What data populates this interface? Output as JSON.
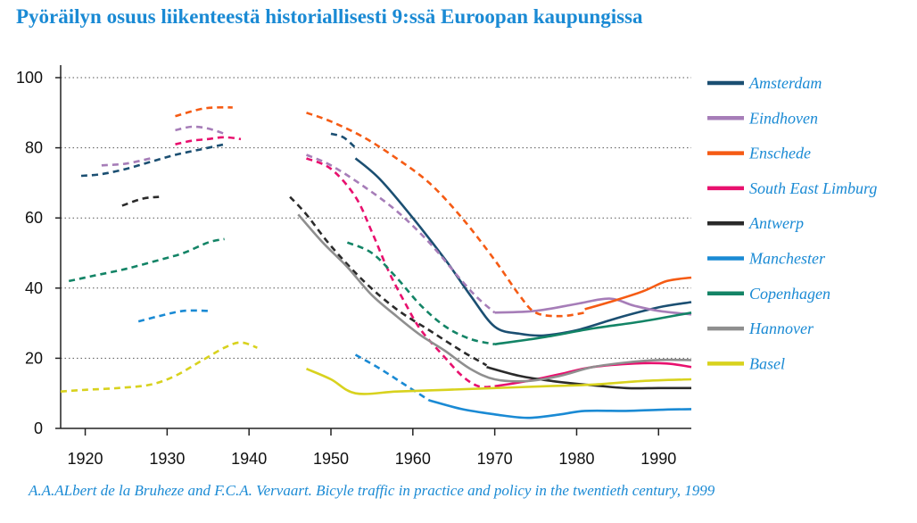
{
  "title": "Pyöräilyn osuus liikenteestä historiallisesti 9:ssä Euroopan kaupungissa",
  "source": "A.A.ALbert de la Bruheze and F.C.A. Vervaart. Bicyle traffic in practice and policy in the twentieth century, 1999",
  "chart_data": {
    "type": "line",
    "title": "Pyöräilyn osuus liikenteestä historiallisesti 9:ssä Euroopan kaupungissa",
    "xlabel": "",
    "ylabel": "",
    "xlim": [
      1917,
      1994
    ],
    "ylim": [
      0,
      100
    ],
    "x_ticks": [
      1920,
      1930,
      1940,
      1950,
      1960,
      1970,
      1980,
      1990
    ],
    "y_ticks": [
      0,
      20,
      40,
      60,
      80,
      100
    ],
    "grid": "horizontal dotted",
    "legend_position": "right",
    "series": [
      {
        "name": "Amsterdam",
        "color": "#1b4f72",
        "segments": [
          {
            "style": "dashed",
            "points": [
              [
                1919.5,
                72
              ],
              [
                1922,
                72.5
              ],
              [
                1925,
                74
              ],
              [
                1928,
                76
              ],
              [
                1931,
                78
              ],
              [
                1934,
                79.5
              ],
              [
                1937,
                81
              ]
            ]
          },
          {
            "style": "dashed",
            "points": [
              [
                1950,
                84
              ],
              [
                1951.5,
                83
              ],
              [
                1953,
                80
              ]
            ]
          },
          {
            "style": "solid",
            "points": [
              [
                1953,
                77
              ],
              [
                1956,
                71
              ],
              [
                1960,
                60
              ],
              [
                1964,
                48
              ],
              [
                1967,
                38
              ],
              [
                1970,
                29
              ],
              [
                1973,
                27
              ],
              [
                1976,
                26.5
              ],
              [
                1980,
                28
              ],
              [
                1985,
                31.5
              ],
              [
                1990,
                34.5
              ],
              [
                1994,
                36
              ]
            ]
          }
        ]
      },
      {
        "name": "Eindhoven",
        "color": "#a67db8",
        "segments": [
          {
            "style": "dashed",
            "points": [
              [
                1922,
                75
              ],
              [
                1925,
                75.5
              ],
              [
                1928,
                77
              ]
            ]
          },
          {
            "style": "dashed",
            "points": [
              [
                1931,
                85
              ],
              [
                1933,
                86
              ],
              [
                1935,
                85.5
              ],
              [
                1937,
                84
              ]
            ]
          },
          {
            "style": "dashed",
            "points": [
              [
                1947,
                78
              ],
              [
                1950,
                75
              ],
              [
                1954,
                69
              ],
              [
                1958,
                62
              ],
              [
                1962,
                53
              ],
              [
                1966,
                42
              ],
              [
                1968,
                37
              ],
              [
                1970,
                33
              ]
            ]
          },
          {
            "style": "solid",
            "points": [
              [
                1970,
                33
              ],
              [
                1975,
                33.5
              ],
              [
                1980,
                35.5
              ],
              [
                1984,
                37
              ],
              [
                1987,
                35
              ],
              [
                1990,
                33.5
              ],
              [
                1994,
                32.5
              ]
            ]
          }
        ]
      },
      {
        "name": "Enschede",
        "color": "#f55b14",
        "segments": [
          {
            "style": "dashed",
            "points": [
              [
                1931,
                89
              ],
              [
                1934,
                91
              ],
              [
                1936,
                91.5
              ],
              [
                1938,
                91.5
              ]
            ]
          },
          {
            "style": "dashed",
            "points": [
              [
                1947,
                90
              ],
              [
                1950,
                87.5
              ],
              [
                1954,
                83
              ],
              [
                1958,
                77
              ],
              [
                1962,
                70
              ],
              [
                1966,
                60
              ],
              [
                1970,
                48
              ],
              [
                1973,
                38
              ],
              [
                1975,
                33
              ],
              [
                1978,
                32
              ],
              [
                1981,
                33
              ]
            ]
          },
          {
            "style": "solid",
            "points": [
              [
                1981,
                34
              ],
              [
                1984,
                36
              ],
              [
                1988,
                39
              ],
              [
                1991,
                42
              ],
              [
                1994,
                43
              ]
            ]
          }
        ]
      },
      {
        "name": "South East Limburg",
        "color": "#e8106e",
        "segments": [
          {
            "style": "dashed",
            "points": [
              [
                1931,
                81
              ],
              [
                1933,
                82
              ],
              [
                1935,
                82.5
              ],
              [
                1937,
                83
              ],
              [
                1939,
                82.5
              ]
            ]
          },
          {
            "style": "dashed",
            "points": [
              [
                1947,
                77
              ],
              [
                1950,
                74
              ],
              [
                1953,
                66
              ],
              [
                1955,
                56
              ],
              [
                1957,
                45
              ],
              [
                1959,
                36
              ],
              [
                1961,
                28
              ],
              [
                1964,
                20
              ],
              [
                1966,
                15
              ],
              [
                1968,
                12
              ],
              [
                1970,
                12
              ]
            ]
          },
          {
            "style": "solid",
            "points": [
              [
                1970,
                12
              ],
              [
                1974,
                13.5
              ],
              [
                1978,
                15.5
              ],
              [
                1982,
                17.5
              ],
              [
                1987,
                18.5
              ],
              [
                1991,
                18.5
              ],
              [
                1994,
                17.5
              ]
            ]
          }
        ]
      },
      {
        "name": "Antwerp",
        "color": "#2a2a2a",
        "segments": [
          {
            "style": "dashed",
            "points": [
              [
                1924.5,
                63.5
              ],
              [
                1927,
                65.5
              ],
              [
                1929,
                66
              ]
            ]
          },
          {
            "style": "dashed",
            "points": [
              [
                1945,
                66
              ],
              [
                1947,
                61
              ],
              [
                1950,
                52
              ],
              [
                1954,
                42
              ],
              [
                1958,
                34
              ],
              [
                1962,
                28
              ],
              [
                1966,
                22
              ],
              [
                1969,
                18
              ]
            ]
          },
          {
            "style": "solid",
            "points": [
              [
                1969,
                17.5
              ],
              [
                1973,
                15
              ],
              [
                1977,
                13.5
              ],
              [
                1981,
                12.5
              ],
              [
                1986,
                11.5
              ],
              [
                1990,
                11.5
              ],
              [
                1994,
                11.5
              ]
            ]
          }
        ]
      },
      {
        "name": "Manchester",
        "color": "#1a8ad4",
        "segments": [
          {
            "style": "dashed",
            "points": [
              [
                1926.5,
                30.5
              ],
              [
                1929,
                32
              ],
              [
                1932,
                33.5
              ],
              [
                1935,
                33.5
              ]
            ]
          },
          {
            "style": "dashed",
            "points": [
              [
                1953,
                21
              ],
              [
                1956,
                17
              ],
              [
                1959,
                12.5
              ],
              [
                1962,
                8
              ]
            ]
          },
          {
            "style": "solid",
            "points": [
              [
                1962,
                8
              ],
              [
                1966,
                5.5
              ],
              [
                1970,
                4
              ],
              [
                1974,
                3
              ],
              [
                1978,
                4
              ],
              [
                1981,
                5
              ],
              [
                1986,
                5
              ],
              [
                1990,
                5.3
              ],
              [
                1994,
                5.5
              ]
            ]
          }
        ]
      },
      {
        "name": "Copenhagen",
        "color": "#138466",
        "segments": [
          {
            "style": "dashed",
            "points": [
              [
                1918,
                42
              ],
              [
                1921,
                43.5
              ],
              [
                1925,
                45.5
              ],
              [
                1929,
                48
              ],
              [
                1932,
                50
              ],
              [
                1935,
                53
              ],
              [
                1937,
                54
              ]
            ]
          },
          {
            "style": "dashed",
            "points": [
              [
                1952,
                53
              ],
              [
                1955,
                50
              ],
              [
                1958,
                43
              ],
              [
                1961,
                35
              ],
              [
                1964,
                29
              ],
              [
                1967,
                25.5
              ],
              [
                1970,
                24
              ]
            ]
          },
          {
            "style": "solid",
            "points": [
              [
                1970,
                24
              ],
              [
                1976,
                26
              ],
              [
                1982,
                28.5
              ],
              [
                1988,
                30.5
              ],
              [
                1994,
                33
              ]
            ]
          }
        ]
      },
      {
        "name": "Hannover",
        "color": "#8f8f8f",
        "segments": [
          {
            "style": "solid",
            "points": [
              [
                1946,
                61
              ],
              [
                1949,
                53
              ],
              [
                1952,
                46
              ],
              [
                1955,
                38
              ],
              [
                1958,
                32
              ],
              [
                1961,
                26.5
              ],
              [
                1964,
                22
              ],
              [
                1967,
                17
              ],
              [
                1970,
                14
              ],
              [
                1974,
                13.5
              ],
              [
                1978,
                15
              ],
              [
                1982,
                17.5
              ],
              [
                1987,
                19
              ],
              [
                1990,
                19.5
              ],
              [
                1994,
                19.5
              ]
            ]
          }
        ]
      },
      {
        "name": "Basel",
        "color": "#d8d21e",
        "segments": [
          {
            "style": "dashed",
            "points": [
              [
                1917,
                10.5
              ],
              [
                1920,
                11
              ],
              [
                1924,
                11.5
              ],
              [
                1928,
                12.5
              ],
              [
                1931,
                15
              ],
              [
                1934,
                19
              ],
              [
                1937,
                23
              ],
              [
                1939,
                24.5
              ],
              [
                1941,
                23
              ]
            ]
          },
          {
            "style": "solid",
            "points": [
              [
                1947,
                17
              ],
              [
                1950,
                14
              ],
              [
                1953,
                10
              ],
              [
                1958,
                10.5
              ],
              [
                1964,
                11
              ],
              [
                1970,
                11.5
              ],
              [
                1976,
                12
              ],
              [
                1982,
                12.5
              ],
              [
                1988,
                13.5
              ],
              [
                1994,
                14
              ]
            ]
          }
        ]
      }
    ]
  }
}
